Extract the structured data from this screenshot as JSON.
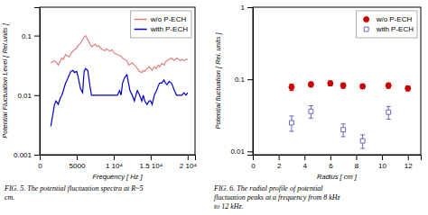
{
  "chart_data": [
    {
      "type": "line",
      "x_label": "Frequency [ Hz ]",
      "y_label": "Potential Fluctuation Level [ Rel.units ]",
      "caption": "FIG. 5. The potential fluctuation spectra at R~5\ncm.",
      "log": "y",
      "xlim": [
        0,
        21000
      ],
      "ylim": [
        0.001,
        0.3
      ],
      "xticks": [
        0,
        5000,
        {
          "value": 10000,
          "label": "1 10⁴"
        },
        {
          "value": 15000,
          "label": "1.5 10⁴"
        },
        {
          "value": 20000,
          "label": "2 10⁴"
        }
      ],
      "yticks": [
        0.001,
        0.01,
        0.1
      ],
      "legend": "upper right",
      "series": [
        {
          "name": "w/o P-ECH",
          "color": "#e08080",
          "x": [
            1500,
            2000,
            2200,
            2500,
            2800,
            3000,
            3200,
            3500,
            3700,
            4000,
            4200,
            4500,
            4700,
            5000,
            5200,
            5500,
            5800,
            6000,
            6200,
            6500,
            6800,
            7000,
            7200,
            7500,
            7800,
            8000,
            8200,
            8500,
            8800,
            9000,
            9200,
            9500,
            9800,
            10000,
            10200,
            10500,
            10800,
            11000,
            11200,
            11500,
            11800,
            12000,
            12200,
            12500,
            12800,
            13000,
            13200,
            13500,
            13800,
            14000,
            14200,
            14500,
            14800,
            15000,
            15200,
            15500,
            15800,
            16000,
            16200,
            16500,
            16800,
            17000,
            17200,
            17500,
            17800,
            18000,
            18200,
            18500,
            18800,
            19000,
            19200,
            19500,
            19800,
            20000
          ],
          "values": [
            0.035,
            0.038,
            0.036,
            0.032,
            0.038,
            0.042,
            0.04,
            0.048,
            0.046,
            0.044,
            0.05,
            0.055,
            0.058,
            0.062,
            0.068,
            0.075,
            0.085,
            0.095,
            0.1,
            0.085,
            0.072,
            0.065,
            0.068,
            0.072,
            0.065,
            0.068,
            0.062,
            0.058,
            0.056,
            0.06,
            0.058,
            0.055,
            0.058,
            0.052,
            0.05,
            0.048,
            0.046,
            0.045,
            0.042,
            0.04,
            0.038,
            0.032,
            0.033,
            0.035,
            0.032,
            0.03,
            0.028,
            0.025,
            0.024,
            0.026,
            0.025,
            0.028,
            0.03,
            0.028,
            0.026,
            0.03,
            0.028,
            0.032,
            0.03,
            0.034,
            0.032,
            0.036,
            0.038,
            0.04,
            0.042,
            0.04,
            0.038,
            0.042,
            0.04,
            0.038,
            0.04,
            0.038,
            0.04,
            0.04
          ]
        },
        {
          "name": "with P-ECH",
          "color": "#0000cc",
          "x": [
            1500,
            2000,
            2200,
            2500,
            2800,
            3000,
            3200,
            3500,
            3700,
            4000,
            4200,
            4500,
            4700,
            5000,
            5200,
            5500,
            5800,
            6000,
            6200,
            6500,
            6800,
            7000,
            7200,
            7500,
            7800,
            8000,
            8200,
            8500,
            8800,
            9000,
            9200,
            9500,
            9800,
            10000,
            10200,
            10500,
            10800,
            11000,
            11200,
            11500,
            11800,
            12000,
            12200,
            12500,
            12800,
            13000,
            13200,
            13500,
            13800,
            14000,
            14200,
            14500,
            14800,
            15000,
            15200,
            15500,
            15800,
            16000,
            16200,
            16500,
            16800,
            17000,
            17200,
            17500,
            17800,
            18000,
            18200,
            18500,
            18800,
            19000,
            19200,
            19500,
            19800,
            20000
          ],
          "values": [
            0.003,
            0.007,
            0.008,
            0.007,
            0.009,
            0.01,
            0.012,
            0.016,
            0.018,
            0.022,
            0.025,
            0.026,
            0.024,
            0.025,
            0.02,
            0.013,
            0.011,
            0.025,
            0.028,
            0.026,
            0.014,
            0.01,
            0.01,
            0.01,
            0.01,
            0.01,
            0.01,
            0.01,
            0.01,
            0.01,
            0.01,
            0.01,
            0.01,
            0.01,
            0.01,
            0.01,
            0.012,
            0.01,
            0.016,
            0.02,
            0.022,
            0.016,
            0.012,
            0.01,
            0.008,
            0.01,
            0.012,
            0.01,
            0.008,
            0.01,
            0.008,
            0.007,
            0.008,
            0.008,
            0.007,
            0.01,
            0.012,
            0.014,
            0.016,
            0.016,
            0.018,
            0.016,
            0.015,
            0.017,
            0.016,
            0.014,
            0.012,
            0.01,
            0.01,
            0.01,
            0.01,
            0.011,
            0.01,
            0.011
          ]
        }
      ]
    },
    {
      "type": "scatter",
      "x_label": "Radius [ cm ]",
      "y_label": "Potential fluctuation [ Rel. units ]",
      "caption": "FIG. 6. The radial profile of potential\nfluctuation peaks at a frequency from 8 kHz\nto 12 kHz.",
      "log": "y",
      "xlim": [
        0,
        13
      ],
      "ylim": [
        0.009,
        1.0
      ],
      "xticks": [
        0,
        2,
        4,
        6,
        8,
        10,
        12
      ],
      "yticks": [
        0.01,
        0.1,
        1
      ],
      "legend": "upper right",
      "series": [
        {
          "name": "w/o P-ECH",
          "color": "#cc0000",
          "marker": "circle",
          "x": [
            3.0,
            4.5,
            6.0,
            7.0,
            8.5,
            10.5,
            12.0
          ],
          "values": [
            0.078,
            0.085,
            0.088,
            0.082,
            0.08,
            0.082,
            0.075
          ],
          "error_lo": [
            0.008,
            0.007,
            0.007,
            0.007,
            0.006,
            0.007,
            0.006
          ],
          "error_hi": [
            0.008,
            0.007,
            0.007,
            0.007,
            0.006,
            0.007,
            0.006
          ]
        },
        {
          "name": "with P-ECH",
          "color": "#6666bb",
          "marker": "square-open",
          "x": [
            3.0,
            4.5,
            7.0,
            8.5,
            10.5
          ],
          "values": [
            0.025,
            0.036,
            0.02,
            0.014,
            0.035
          ],
          "error_lo": [
            0.006,
            0.007,
            0.004,
            0.003,
            0.007
          ],
          "error_hi": [
            0.006,
            0.007,
            0.004,
            0.003,
            0.007
          ]
        }
      ]
    }
  ]
}
